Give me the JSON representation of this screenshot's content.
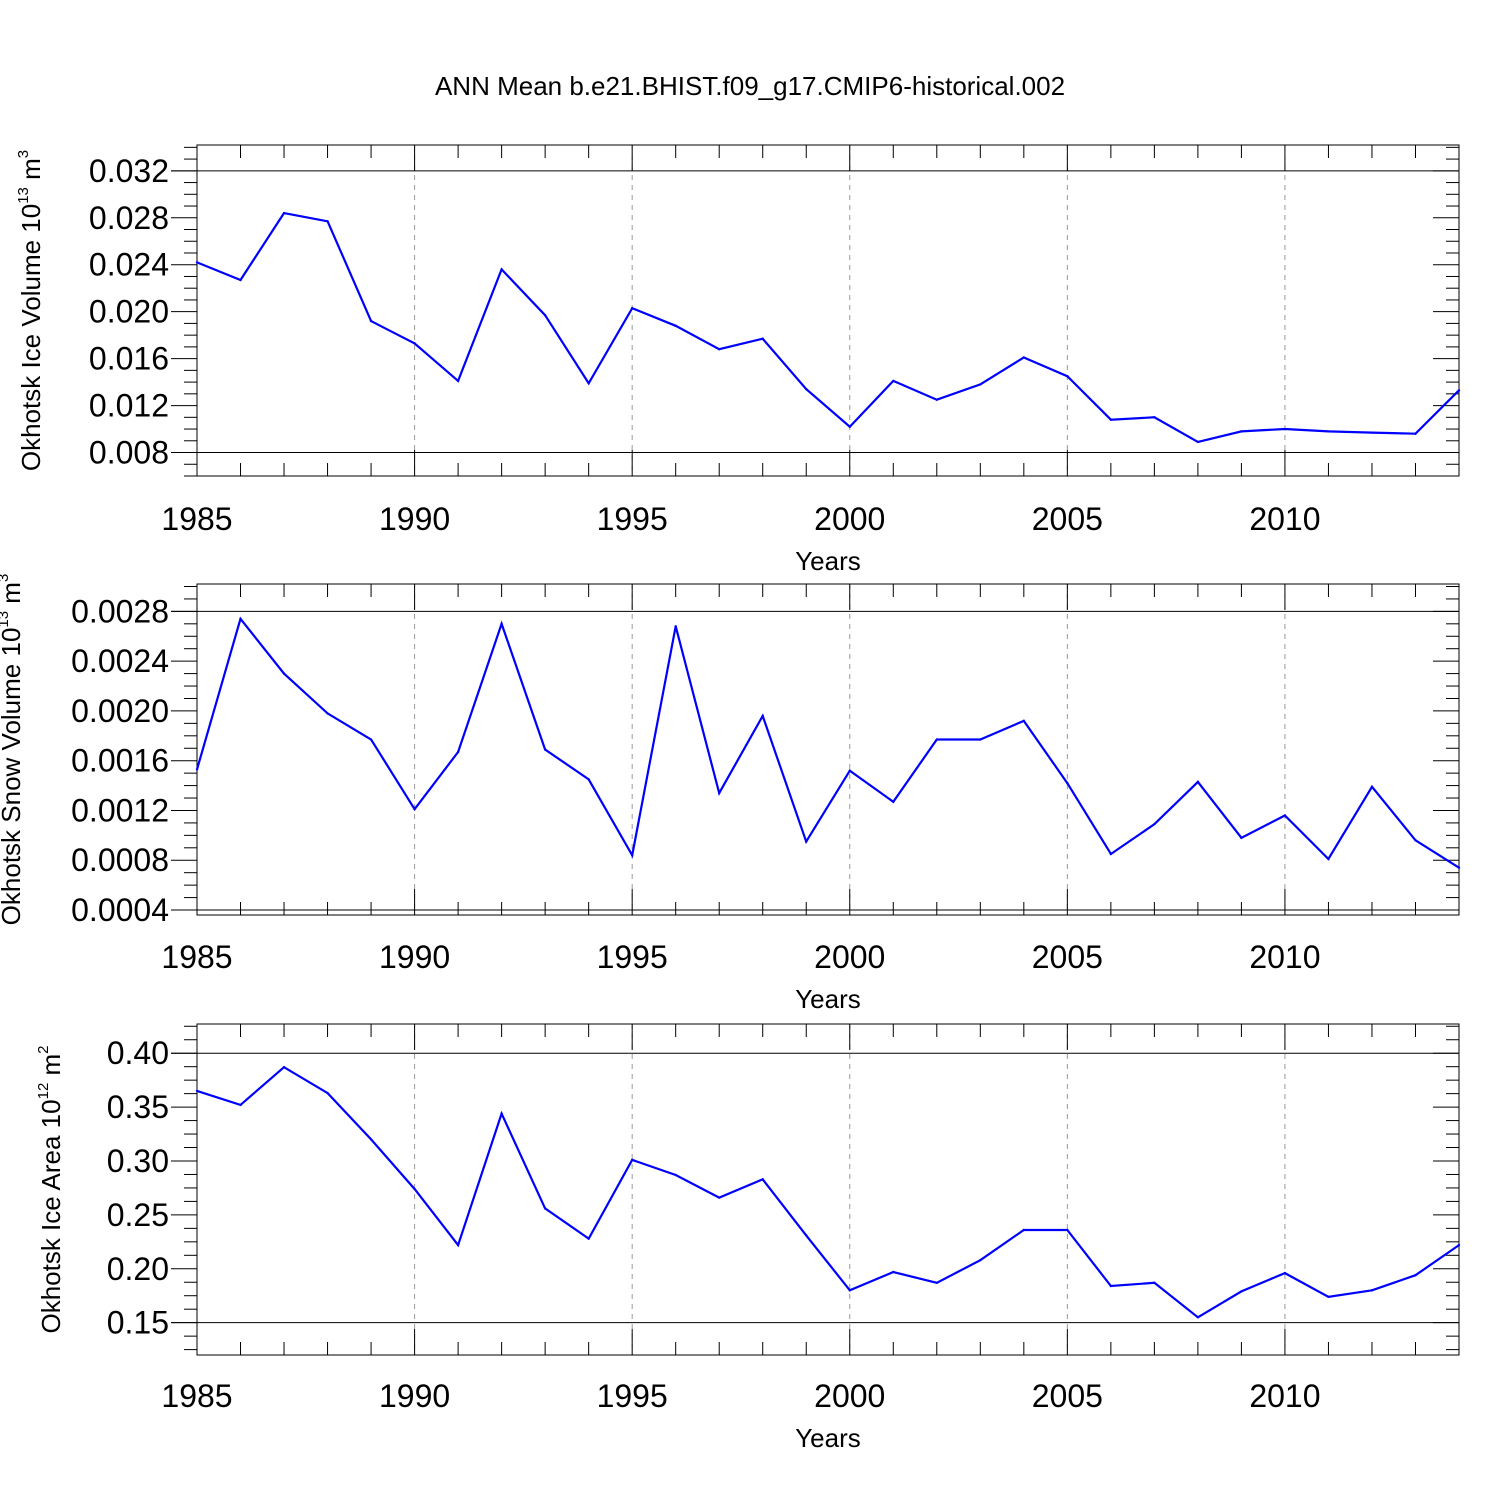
{
  "title": "ANN Mean b.e21.BHIST.f09_g17.CMIP6-historical.002",
  "colors": {
    "line": "#0000ff",
    "axis": "#000000",
    "grid": "#999999"
  },
  "chart_data": [
    {
      "type": "line",
      "ylabel": {
        "prefix": "Okhotsk Ice Volume 10",
        "exp": "13",
        "unit": " m",
        "unit_exp": "3"
      },
      "xlabel": "Years",
      "xlim": [
        1985,
        2014
      ],
      "ylim": [
        0.006,
        0.0342
      ],
      "x_ticks": [
        1985,
        1990,
        1995,
        2000,
        2005,
        2010
      ],
      "y_ticks": [
        "0.008",
        "0.012",
        "0.016",
        "0.020",
        "0.024",
        "0.028",
        "0.032"
      ],
      "x": [
        1985,
        1986,
        1987,
        1988,
        1989,
        1990,
        1991,
        1992,
        1993,
        1994,
        1995,
        1996,
        1997,
        1998,
        1999,
        2000,
        2001,
        2002,
        2003,
        2004,
        2005,
        2006,
        2007,
        2008,
        2009,
        2010,
        2011,
        2012,
        2013,
        2014
      ],
      "values": [
        0.0242,
        0.0227,
        0.0284,
        0.0277,
        0.0192,
        0.0173,
        0.0141,
        0.0236,
        0.0197,
        0.0139,
        0.0203,
        0.0188,
        0.0168,
        0.0177,
        0.0134,
        0.0102,
        0.0141,
        0.0125,
        0.0138,
        0.0161,
        0.0145,
        0.0108,
        0.011,
        0.0089,
        0.0098,
        0.01,
        0.0098,
        0.0097,
        0.0096,
        0.0133
      ]
    },
    {
      "type": "line",
      "ylabel": {
        "prefix": "Okhotsk Snow Volume 10",
        "exp": "13",
        "unit": " m",
        "unit_exp": "3"
      },
      "xlabel": "Years",
      "xlim": [
        1985,
        2014
      ],
      "ylim": [
        0.00036,
        0.00302
      ],
      "x_ticks": [
        1985,
        1990,
        1995,
        2000,
        2005,
        2010
      ],
      "y_ticks": [
        "0.0004",
        "0.0008",
        "0.0012",
        "0.0016",
        "0.0020",
        "0.0024",
        "0.0028"
      ],
      "x": [
        1985,
        1986,
        1987,
        1988,
        1989,
        1990,
        1991,
        1992,
        1993,
        1994,
        1995,
        1996,
        1997,
        1998,
        1999,
        2000,
        2001,
        2002,
        2003,
        2004,
        2005,
        2006,
        2007,
        2008,
        2009,
        2010,
        2011,
        2012,
        2013,
        2014
      ],
      "values": [
        0.00153,
        0.00274,
        0.0023,
        0.00198,
        0.00177,
        0.00121,
        0.00167,
        0.0027,
        0.00169,
        0.00145,
        0.00084,
        0.00268,
        0.00134,
        0.00196,
        0.00095,
        0.00152,
        0.00127,
        0.00177,
        0.00177,
        0.00192,
        0.00142,
        0.00085,
        0.00109,
        0.00143,
        0.00098,
        0.00116,
        0.00081,
        0.00139,
        0.00096,
        0.00074
      ]
    },
    {
      "type": "line",
      "ylabel": {
        "prefix": "Okhotsk Ice Area 10",
        "exp": "12",
        "unit": " m",
        "unit_exp": "2"
      },
      "xlabel": "Years",
      "xlim": [
        1985,
        2014
      ],
      "ylim": [
        0.12,
        0.4271
      ],
      "x_ticks": [
        1985,
        1990,
        1995,
        2000,
        2005,
        2010
      ],
      "y_ticks": [
        "0.15",
        "0.20",
        "0.25",
        "0.30",
        "0.35",
        "0.40"
      ],
      "x": [
        1985,
        1986,
        1987,
        1988,
        1989,
        1990,
        1991,
        1992,
        1993,
        1994,
        1995,
        1996,
        1997,
        1998,
        1999,
        2000,
        2001,
        2002,
        2003,
        2004,
        2005,
        2006,
        2007,
        2008,
        2009,
        2010,
        2011,
        2012,
        2013,
        2014
      ],
      "values": [
        0.365,
        0.352,
        0.387,
        0.363,
        0.32,
        0.274,
        0.222,
        0.344,
        0.256,
        0.228,
        0.301,
        0.287,
        0.266,
        0.283,
        0.231,
        0.18,
        0.197,
        0.187,
        0.208,
        0.236,
        0.236,
        0.184,
        0.187,
        0.155,
        0.179,
        0.196,
        0.174,
        0.18,
        0.194,
        0.222
      ]
    }
  ]
}
